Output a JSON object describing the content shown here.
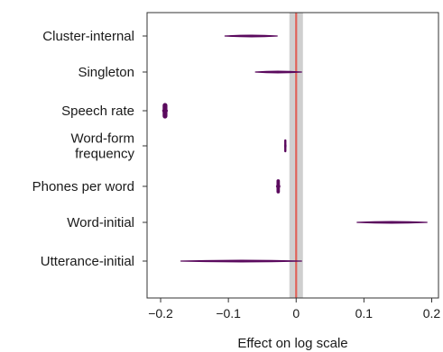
{
  "chart_data": {
    "type": "interval",
    "title": "",
    "xlabel": "Effect on log scale",
    "ylabel": "",
    "xlim": [
      -0.22,
      0.21
    ],
    "xticks": [
      -0.2,
      -0.1,
      0,
      0.1,
      0.2
    ],
    "xtick_labels": [
      "−0.2",
      "−0.1",
      "0",
      "0.1",
      "0.2"
    ],
    "zero_band": [
      -0.01,
      0.01
    ],
    "reference_line": 0,
    "grid": false,
    "categories": [
      {
        "label": "Cluster-internal",
        "low": -0.105,
        "high": -0.028,
        "mid": -0.065
      },
      {
        "label": "Singleton",
        "low": -0.06,
        "high": 0.008,
        "mid": -0.028
      },
      {
        "label": "Speech rate",
        "low": -0.197,
        "high": -0.19,
        "mid": -0.1935
      },
      {
        "label": "Word-form\nfrequency",
        "low": -0.017,
        "high": -0.015,
        "mid": -0.016
      },
      {
        "label": "Phones per word",
        "low": -0.029,
        "high": -0.024,
        "mid": -0.0265
      },
      {
        "label": "Word-initial",
        "low": 0.09,
        "high": 0.193,
        "mid": 0.14
      },
      {
        "label": "Utterance-initial",
        "low": -0.17,
        "high": 0.008,
        "mid": -0.08
      }
    ],
    "colors": {
      "interval": "#5b0a5e",
      "reference_line": "#e0635a",
      "band": "#cfcfcf"
    }
  }
}
